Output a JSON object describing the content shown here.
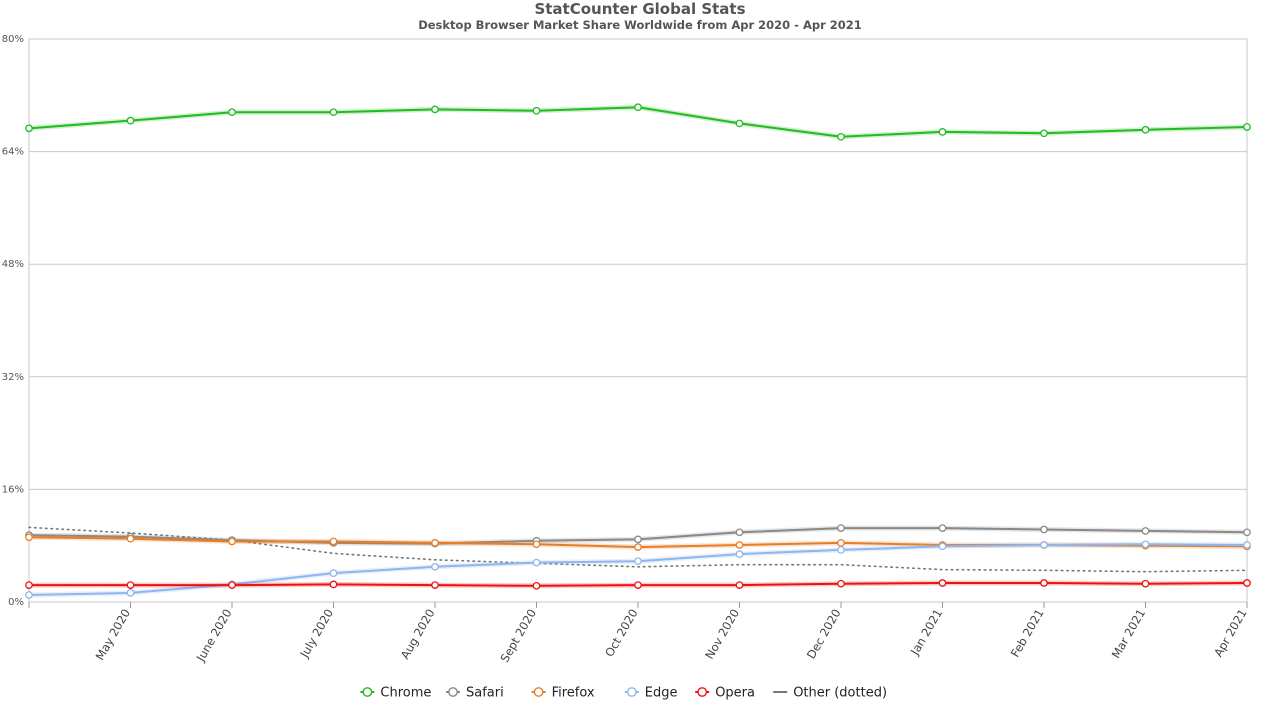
{
  "chart_data": {
    "type": "line",
    "title": "StatCounter Global Stats",
    "subtitle": "Desktop Browser Market Share Worldwide from Apr 2020 - Apr 2021",
    "xlabel": "",
    "ylabel": "",
    "ylim": [
      0,
      80
    ],
    "yticks": [
      0,
      16,
      32,
      48,
      64,
      80
    ],
    "ytick_labels": [
      "0%",
      "16%",
      "32%",
      "48%",
      "64%",
      "80%"
    ],
    "categories": [
      "Apr 2020",
      "May 2020",
      "June 2020",
      "July 2020",
      "Aug 2020",
      "Sept 2020",
      "Oct 2020",
      "Nov 2020",
      "Dec 2020",
      "Jan 2021",
      "Feb 2021",
      "Mar 2021",
      "Apr 2021"
    ],
    "x_tick_labels": [
      "",
      "May 2020",
      "June 2020",
      "July 2020",
      "Aug 2020",
      "Sept 2020",
      "Oct 2020",
      "Nov 2020",
      "Dec 2020",
      "Jan 2021",
      "Feb 2021",
      "Mar 2021",
      "Apr 2021"
    ],
    "grid": true,
    "legend_position": "bottom",
    "series": [
      {
        "name": "Chrome",
        "color": "#22bb22",
        "style": "solid",
        "markers": true,
        "values": [
          67.3,
          68.4,
          69.6,
          69.6,
          70.0,
          69.8,
          70.3,
          68.0,
          66.1,
          66.8,
          66.6,
          67.1,
          67.5
        ]
      },
      {
        "name": "Safari",
        "color": "#888888",
        "style": "solid",
        "markers": true,
        "values": [
          9.5,
          9.3,
          8.8,
          8.4,
          8.3,
          8.7,
          8.9,
          9.9,
          10.5,
          10.5,
          10.3,
          10.1,
          9.9
        ]
      },
      {
        "name": "Firefox",
        "color": "#e87e28",
        "style": "solid",
        "markers": true,
        "values": [
          9.2,
          9.0,
          8.6,
          8.6,
          8.4,
          8.2,
          7.8,
          8.1,
          8.4,
          8.1,
          8.1,
          8.0,
          7.9
        ]
      },
      {
        "name": "Edge",
        "color": "#8fb6ee",
        "style": "solid",
        "markers": true,
        "values": [
          1.0,
          1.3,
          2.5,
          4.1,
          5.0,
          5.6,
          5.8,
          6.8,
          7.4,
          7.9,
          8.1,
          8.2,
          8.1
        ]
      },
      {
        "name": "Opera",
        "color": "#ee1111",
        "style": "solid",
        "markers": true,
        "values": [
          2.4,
          2.4,
          2.4,
          2.5,
          2.4,
          2.3,
          2.4,
          2.4,
          2.6,
          2.7,
          2.7,
          2.6,
          2.7
        ]
      },
      {
        "name": "Other (dotted)",
        "color": "#777777",
        "style": "dotted",
        "markers": false,
        "values": [
          10.6,
          9.8,
          8.8,
          6.9,
          6.0,
          5.5,
          5.0,
          5.3,
          5.3,
          4.6,
          4.5,
          4.3,
          4.5
        ]
      }
    ]
  }
}
